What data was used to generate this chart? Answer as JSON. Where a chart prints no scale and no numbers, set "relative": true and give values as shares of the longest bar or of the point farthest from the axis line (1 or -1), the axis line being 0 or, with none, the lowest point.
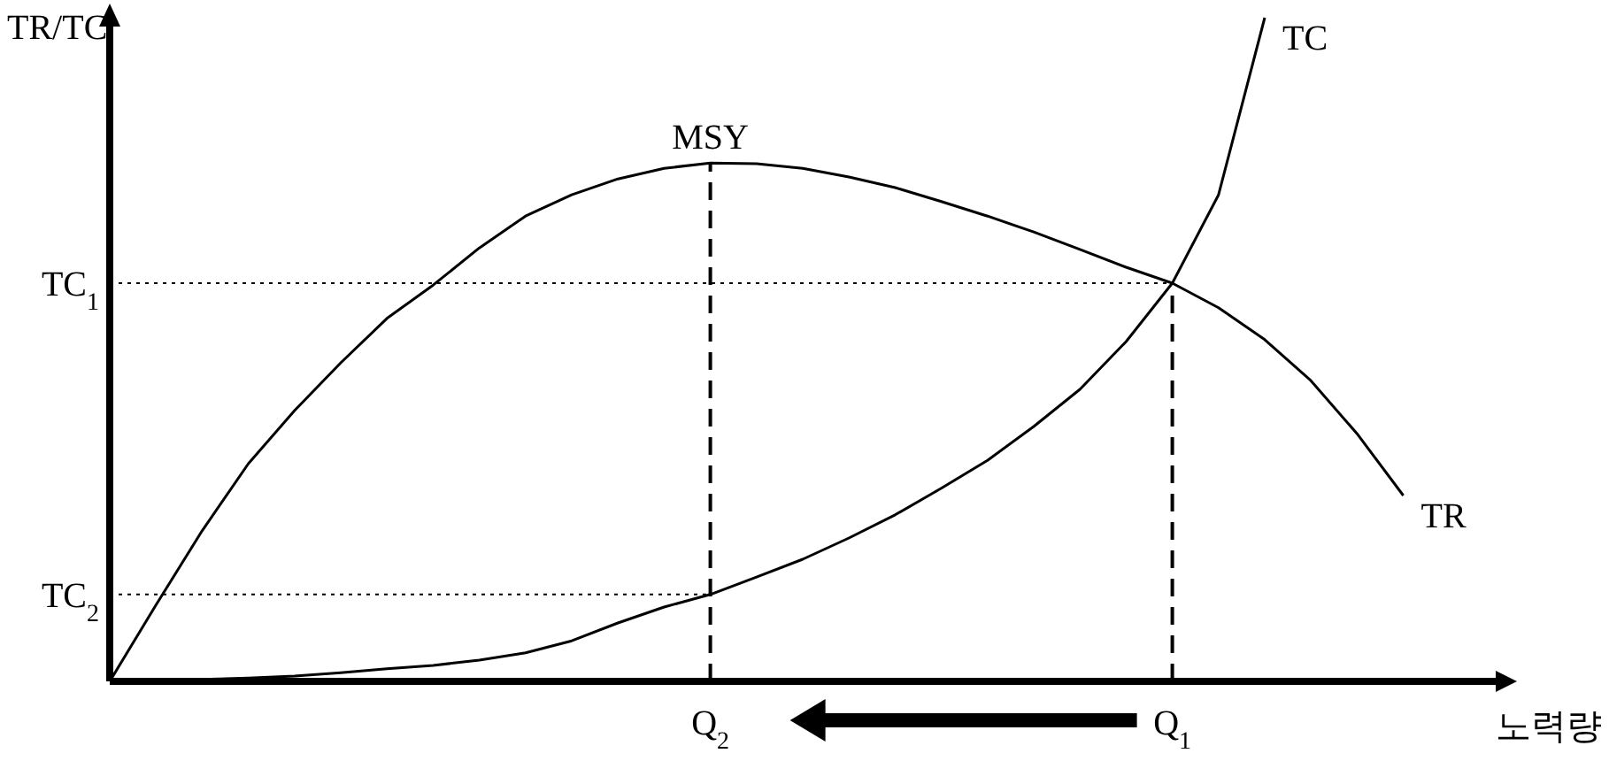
{
  "chart_data": {
    "type": "line",
    "relative": true,
    "xlabel": "노력량",
    "ylabel": "TR/TC",
    "categories": [
      null,
      null,
      null,
      null,
      null,
      null,
      null,
      null,
      null,
      null,
      null,
      null,
      null,
      "Q$_{2}$",
      null,
      null,
      null,
      null,
      null,
      null,
      null,
      null,
      null,
      "Q$_{1}$",
      null,
      null,
      null,
      null,
      null
    ],
    "annotations": [
      {
        "text": "MSY",
        "x": "Q$_{2}$",
        "y": 0.781
      }
    ],
    "ref_lines": [
      {
        "axis": "x",
        "value": "Q$_{2}$",
        "line_style": "dashed"
      },
      {
        "axis": "x",
        "value": "Q$_{1}$",
        "line_style": "dashed"
      },
      {
        "axis": "y",
        "value": 0.6,
        "label": "TC$_{1}$",
        "line_style": "dotted"
      },
      {
        "axis": "y",
        "value": 0.131,
        "label": "TC$_{2}$",
        "line_style": "dotted"
      }
    ],
    "series": [
      {
        "name": "TR",
        "color": "#000000",
        "values": [
          0,
          0.115,
          0.227,
          0.328,
          0.408,
          0.48,
          0.547,
          0.597,
          0.653,
          0.701,
          0.733,
          0.757,
          0.773,
          0.781,
          0.78,
          0.773,
          0.76,
          0.744,
          0.723,
          0.701,
          0.677,
          0.651,
          0.624,
          0.6,
          0.563,
          0.515,
          0.453,
          0.373,
          0.28
        ]
      },
      {
        "name": "TC",
        "color": "#000000",
        "values": [
          0,
          0,
          0.003,
          0.005,
          0.008,
          0.013,
          0.019,
          0.024,
          0.032,
          0.043,
          0.061,
          0.088,
          0.112,
          0.131,
          0.157,
          0.184,
          0.216,
          0.251,
          0.291,
          0.333,
          0.384,
          0.44,
          0.512,
          0.6,
          0.733,
          1,
          null,
          null,
          null
        ]
      }
    ]
  }
}
